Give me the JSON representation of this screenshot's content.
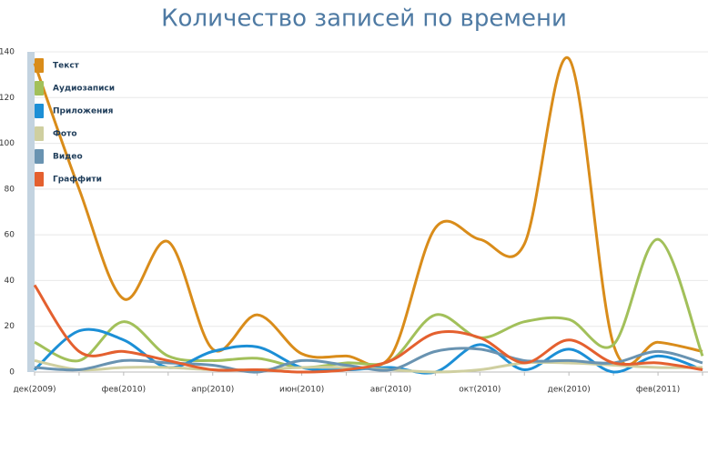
{
  "chart_data": {
    "type": "line",
    "title": "Количество записей по времени",
    "categories": [
      "дек(2009)",
      null,
      "фев(2010)",
      null,
      "апр(2010)",
      null,
      "июн(2010)",
      null,
      "авг(2010)",
      null,
      "окт(2010)",
      null,
      "дек(2010)",
      null,
      "фев(2011)",
      null
    ],
    "series": [
      {
        "name": "Текст",
        "color": "#d98c1a",
        "values": [
          135,
          80,
          32,
          57,
          10,
          25,
          8,
          7,
          7,
          63,
          58,
          56,
          137,
          12,
          13,
          9
        ]
      },
      {
        "name": "Аудиозаписи",
        "color": "#a2c05a",
        "values": [
          13,
          5,
          22,
          7,
          5,
          6,
          2,
          4,
          5,
          25,
          15,
          22,
          23,
          12,
          58,
          7
        ]
      },
      {
        "name": "Приложения",
        "color": "#1c8fd6",
        "values": [
          1,
          18,
          14,
          2,
          9,
          11,
          2,
          1,
          2,
          0,
          12,
          1,
          10,
          0,
          7,
          1
        ]
      },
      {
        "name": "Фото",
        "color": "#cfcfa0",
        "values": [
          5,
          1,
          2,
          2,
          1,
          1,
          2,
          2,
          1,
          0,
          1,
          4,
          4,
          3,
          2,
          2
        ]
      },
      {
        "name": "Видео",
        "color": "#6993b1",
        "values": [
          2,
          1,
          5,
          4,
          3,
          0,
          5,
          3,
          1,
          9,
          10,
          5,
          5,
          4,
          9,
          4
        ]
      },
      {
        "name": "Граффити",
        "color": "#e4602f",
        "values": [
          38,
          9,
          9,
          5,
          1,
          1,
          0,
          1,
          5,
          17,
          15,
          4,
          14,
          4,
          4,
          1
        ]
      }
    ],
    "ylim": [
      0,
      140
    ],
    "yticks": [
      0,
      20,
      40,
      60,
      80,
      100,
      120,
      140
    ],
    "grid": true,
    "legend": "top-left"
  }
}
